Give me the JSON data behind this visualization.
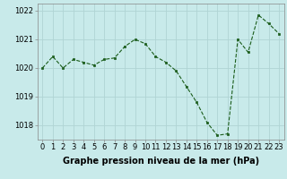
{
  "x": [
    0,
    1,
    2,
    3,
    4,
    5,
    6,
    7,
    8,
    9,
    10,
    11,
    12,
    13,
    14,
    15,
    16,
    17,
    18,
    19,
    20,
    21,
    22,
    23
  ],
  "y": [
    1020.0,
    1020.4,
    1020.0,
    1020.3,
    1020.2,
    1020.1,
    1020.3,
    1020.35,
    1020.75,
    1021.0,
    1020.85,
    1020.4,
    1020.2,
    1019.9,
    1019.35,
    1018.8,
    1018.1,
    1017.65,
    1017.7,
    1021.0,
    1020.55,
    1021.85,
    1021.55,
    1021.2
  ],
  "line_color": "#1a5c1a",
  "marker_color": "#1a5c1a",
  "bg_color": "#c8eaea",
  "grid_color": "#b0d4d4",
  "xlabel": "Graphe pression niveau de la mer (hPa)",
  "xlabel_fontsize": 7,
  "ylim_min": 1017.5,
  "ylim_max": 1022.25,
  "yticks": [
    1018,
    1019,
    1020,
    1021,
    1022
  ],
  "xticks": [
    0,
    1,
    2,
    3,
    4,
    5,
    6,
    7,
    8,
    9,
    10,
    11,
    12,
    13,
    14,
    15,
    16,
    17,
    18,
    19,
    20,
    21,
    22,
    23
  ],
  "tick_fontsize": 6,
  "xlim_min": -0.5,
  "xlim_max": 23.5
}
